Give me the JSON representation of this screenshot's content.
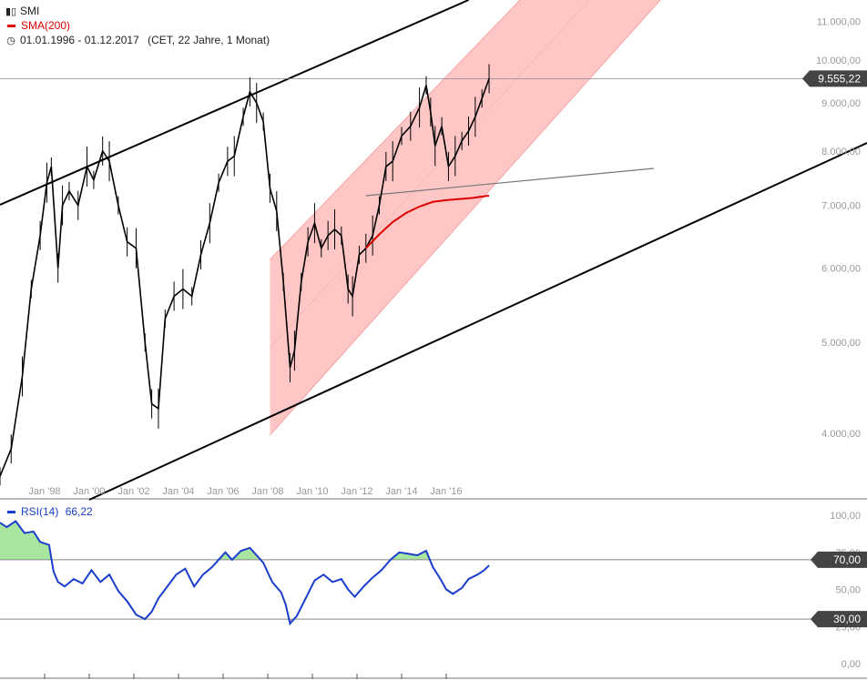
{
  "legend": {
    "symbol": "SMI",
    "sma_label": "SMA(200)",
    "period": "01.01.1996 - 01.12.2017",
    "period_info": "(CET, 22 Jahre, 1 Monat)",
    "rsi_label": "RSI(14)",
    "rsi_value": "66,22"
  },
  "colors": {
    "candles": "#000000",
    "sma": "#e00000",
    "channel_fill": "#ffbcbc",
    "rsi": "#1a3dcc",
    "rsi_overbought_fill": "#a8e6a0",
    "rsi_oversold_fill": "#f4a8b0"
  },
  "chart_data": [
    {
      "type": "line",
      "title": "SMI",
      "scale": "log",
      "ylim": [
        3500,
        12500
      ],
      "y_ticks": [
        "4.000,00",
        "5.000,00",
        "6.000,00",
        "7.000,00",
        "8.000,00",
        "9.000,00",
        "10.000,00",
        "11.000,00"
      ],
      "y_tick_values": [
        4000,
        5000,
        6000,
        7000,
        8000,
        9000,
        10000,
        11000
      ],
      "x_tick_labels": [
        "Jan '98",
        "Jan '00",
        "Jan '02",
        "Jan '04",
        "Jan '06",
        "Jan '08",
        "Jan '10",
        "Jan '12",
        "Jan '14",
        "Jan '16"
      ],
      "x_tick_years": [
        1998,
        2000,
        2002,
        2004,
        2006,
        2008,
        2010,
        2012,
        2014,
        2016
      ],
      "xlim": [
        1996.0,
        2032.0
      ],
      "current_value": 9555.22,
      "current_value_label": "9.555,22",
      "series": [
        {
          "name": "SMI",
          "x": [
            1996.0,
            1996.5,
            1997.0,
            1997.4,
            1997.8,
            1998.1,
            1998.3,
            1998.6,
            1998.8,
            1999.1,
            1999.5,
            1999.9,
            2000.2,
            2000.6,
            2000.9,
            2001.3,
            2001.7,
            2002.1,
            2002.5,
            2002.8,
            2003.1,
            2003.4,
            2003.8,
            2004.2,
            2004.6,
            2005.0,
            2005.4,
            2005.8,
            2006.2,
            2006.5,
            2006.9,
            2007.2,
            2007.5,
            2007.8,
            2008.1,
            2008.4,
            2008.7,
            2009.0,
            2009.2,
            2009.5,
            2009.8,
            2010.1,
            2010.4,
            2010.7,
            2011.0,
            2011.3,
            2011.6,
            2011.8,
            2012.1,
            2012.4,
            2012.7,
            2013.0,
            2013.3,
            2013.6,
            2014.0,
            2014.4,
            2014.8,
            2015.1,
            2015.3,
            2015.5,
            2015.8,
            2016.1,
            2016.4,
            2016.7,
            2017.0,
            2017.3,
            2017.6,
            2017.92
          ],
          "values": [
            3600,
            3850,
            4600,
            5700,
            6500,
            7400,
            7700,
            6000,
            7000,
            7250,
            7000,
            7700,
            7450,
            8000,
            7800,
            7000,
            6400,
            6300,
            5000,
            4300,
            4250,
            5300,
            5600,
            5700,
            5600,
            6200,
            6700,
            7400,
            7800,
            7900,
            8700,
            9250,
            9000,
            8600,
            7300,
            6900,
            5800,
            4700,
            4900,
            5800,
            6400,
            6700,
            6300,
            6500,
            6600,
            6500,
            5700,
            5600,
            6200,
            6300,
            6500,
            7000,
            7700,
            7800,
            8300,
            8500,
            8900,
            9400,
            8800,
            8100,
            8500,
            7700,
            7900,
            8200,
            8400,
            8700,
            9100,
            9555
          ]
        },
        {
          "name": "SMA(200)",
          "x": [
            2012.4,
            2013.0,
            2013.6,
            2014.2,
            2014.8,
            2015.4,
            2016.0,
            2016.6,
            2017.2,
            2017.92
          ],
          "values": [
            6300,
            6520,
            6720,
            6870,
            6980,
            7060,
            7090,
            7110,
            7130,
            7170
          ]
        }
      ]
    },
    {
      "type": "line",
      "title": "RSI(14)",
      "ylim": [
        0,
        100
      ],
      "y_ticks": [
        "0,00",
        "25,00",
        "50,00",
        "75,00",
        "100,00"
      ],
      "y_tick_values": [
        0,
        25,
        50,
        75,
        100
      ],
      "reference_lines": [
        {
          "value": 70,
          "label": "70,00"
        },
        {
          "value": 30,
          "label": "30,00"
        }
      ],
      "current_value": 66.22,
      "series": [
        {
          "name": "RSI(14)",
          "x": [
            1996.0,
            1996.3,
            1996.7,
            1997.1,
            1997.5,
            1997.8,
            1998.2,
            1998.4,
            1998.6,
            1998.9,
            1999.3,
            1999.7,
            2000.1,
            2000.5,
            2000.9,
            2001.3,
            2001.7,
            2002.1,
            2002.5,
            2002.8,
            2003.1,
            2003.5,
            2003.9,
            2004.3,
            2004.7,
            2005.1,
            2005.5,
            2005.8,
            2006.1,
            2006.4,
            2006.8,
            2007.2,
            2007.5,
            2007.8,
            2008.2,
            2008.6,
            2008.8,
            2009.0,
            2009.3,
            2009.7,
            2010.1,
            2010.5,
            2010.9,
            2011.3,
            2011.6,
            2011.9,
            2012.3,
            2012.7,
            2013.1,
            2013.5,
            2013.9,
            2014.3,
            2014.7,
            2015.1,
            2015.4,
            2015.7,
            2016.0,
            2016.3,
            2016.7,
            2017.0,
            2017.4,
            2017.7,
            2017.92
          ],
          "values": [
            95,
            92,
            96,
            88,
            89,
            82,
            80,
            62,
            55,
            52,
            57,
            54,
            63,
            55,
            60,
            49,
            42,
            33,
            30,
            35,
            44,
            52,
            60,
            64,
            52,
            60,
            65,
            70,
            75,
            70,
            76,
            78,
            73,
            68,
            55,
            48,
            40,
            27,
            32,
            44,
            56,
            60,
            55,
            57,
            50,
            45,
            52,
            58,
            63,
            70,
            75,
            74,
            73,
            76,
            65,
            58,
            50,
            47,
            51,
            57,
            60,
            63,
            66.22
          ]
        }
      ]
    }
  ]
}
